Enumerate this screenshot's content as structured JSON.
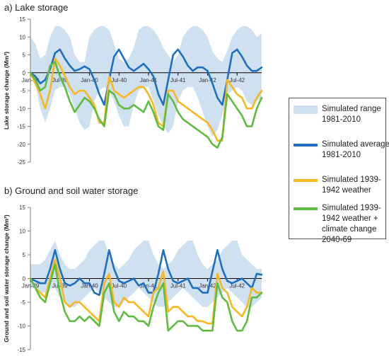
{
  "chart_data": [
    {
      "panel": "a",
      "type": "line",
      "title": "a) Lake storage",
      "ylabel": "Lake storage change (Mm³)",
      "xlabel": "",
      "ylim": [
        -25,
        15
      ],
      "yticks": [
        15,
        10,
        5,
        0,
        -5,
        -10,
        -15,
        -20,
        -25
      ],
      "xtick_labels": [
        "Jan-39",
        "Jul-39",
        "Jan-40",
        "Jul-40",
        "Jan-41",
        "Jul-41",
        "Jan-42",
        "Jul-42"
      ],
      "x_start": "Jan-1939",
      "n_months": 48,
      "band": {
        "name": "Simulated range 1981-2010",
        "upper": [
          10,
          8,
          4,
          5,
          10,
          13,
          13,
          12,
          10,
          5,
          3,
          3,
          10,
          12,
          13,
          13,
          12,
          8,
          4,
          3,
          4,
          7,
          12,
          13,
          13,
          12,
          10,
          7,
          5,
          3,
          5,
          10,
          12,
          13,
          13,
          12,
          10,
          6,
          4,
          3,
          6,
          10,
          12,
          13,
          13,
          12,
          10,
          11
        ],
        "lower": [
          0,
          -3,
          -10,
          -14,
          -10,
          -5,
          -4,
          -4,
          -6,
          -10,
          -14,
          -16,
          -15,
          -8,
          -5,
          -4,
          -5,
          -8,
          -12,
          -15,
          -15,
          -9,
          -5,
          -4,
          -4,
          -8,
          -12,
          -15,
          -17,
          -15,
          -8,
          -5,
          -4,
          -4,
          -7,
          -11,
          -15,
          -18,
          -16,
          -12,
          -6,
          -5,
          -4,
          -5,
          -8,
          -9,
          -8,
          -7
        ]
      },
      "series": [
        {
          "name": "Simulated average 1981-2010",
          "values": [
            0,
            -1,
            -3,
            -2,
            1,
            5.5,
            6.5,
            4,
            2,
            0.5,
            1,
            1.8,
            1,
            -2,
            -6,
            -9,
            -2,
            4.5,
            6.5,
            4,
            1.5,
            0.5,
            1.5,
            2.5,
            1,
            -1,
            -6,
            -9,
            -2,
            5,
            6.5,
            4.5,
            2,
            0.5,
            1.5,
            1.5,
            0.5,
            -3,
            -7,
            -9,
            -2,
            5.5,
            6.5,
            4.5,
            2,
            0.5,
            0.5,
            1.5
          ]
        },
        {
          "name": "Simulated 1939-1942 weather",
          "values": [
            0,
            -3,
            -6,
            -10,
            -5,
            4,
            2,
            -1,
            -4,
            -6,
            -5,
            -5,
            -7,
            -9,
            -14,
            -14,
            -1,
            -5,
            -6,
            -7,
            -6,
            -5,
            -4,
            -4,
            -6,
            -9,
            -14,
            -15,
            -5,
            -5,
            -8,
            -9,
            -10,
            -11,
            -12,
            -13,
            -14,
            -16,
            -19,
            -19,
            -2,
            -4,
            -6,
            -7,
            -10,
            -10,
            -7,
            -5
          ]
        },
        {
          "name": "Simulated 1939-1942 weather + climate change 2040-69",
          "values": [
            0,
            -2,
            -5,
            -4,
            2,
            3,
            -1,
            -4,
            -8,
            -11,
            -9,
            -7,
            -8,
            -10,
            -13,
            -15,
            -5,
            -6,
            -9,
            -10,
            -10,
            -9,
            -10,
            -11,
            -8,
            -11,
            -15,
            -16,
            -6,
            -8,
            -11,
            -13,
            -14,
            -15,
            -16,
            -17,
            -18,
            -20,
            -21,
            -18,
            -6,
            -8,
            -10,
            -12,
            -15,
            -15,
            -10,
            -7
          ]
        }
      ]
    },
    {
      "panel": "b",
      "type": "line",
      "title": "b) Ground and soil water storage",
      "ylabel": "Ground and soil water storage change (Mm³)",
      "xlabel": "",
      "ylim": [
        -15,
        15
      ],
      "yticks": [
        15,
        10,
        5,
        0,
        -5,
        -10,
        -15
      ],
      "xtick_labels": [
        "Jan-39",
        "Jul-39",
        "Jan-40",
        "Jul-40",
        "Jan-41",
        "Jul-41",
        "Jan-42",
        "Jul-42"
      ],
      "x_start": "Jan-1939",
      "n_months": 48,
      "band": {
        "name": "Simulated range 1981-2010",
        "upper": [
          3,
          3,
          3,
          4,
          6,
          8,
          5,
          3,
          2,
          2,
          3,
          4,
          6,
          7,
          8,
          8,
          5,
          3,
          2,
          3,
          4,
          6,
          7,
          8,
          8,
          5,
          3,
          2,
          3,
          4,
          6,
          7,
          8,
          8,
          5,
          3,
          2,
          3,
          4,
          6,
          7,
          8,
          8,
          5,
          4,
          3,
          2,
          2
        ],
        "lower": [
          -2,
          -2,
          -3,
          -3,
          -2,
          -2,
          -4,
          -5,
          -6,
          -6,
          -5,
          -4,
          -3,
          -2,
          -3,
          -4,
          -5,
          -6,
          -6,
          -5,
          -4,
          -3,
          -2,
          -3,
          -4,
          -5,
          -6,
          -6,
          -5,
          -4,
          -3,
          -2,
          -3,
          -4,
          -5,
          -6,
          -6,
          -5,
          -4,
          -3,
          -2,
          -3,
          -4,
          -5,
          -6,
          -6,
          -5,
          -4
        ]
      },
      "series": [
        {
          "name": "Simulated average 1981-2010",
          "values": [
            0,
            -0.5,
            -1,
            -1,
            2,
            6,
            2,
            -1,
            -1.5,
            -1,
            0,
            -1,
            -1,
            -3,
            -3.5,
            1,
            6,
            2,
            -0.5,
            -1,
            -0.5,
            0,
            -1.5,
            -1,
            -3,
            -3,
            1,
            6,
            2,
            -0.5,
            -1,
            -0.5,
            0,
            -2,
            -2,
            -3,
            -3,
            1.5,
            6,
            2,
            -0.5,
            -1,
            -0.5,
            0,
            -1,
            -2,
            1,
            0.8
          ]
        },
        {
          "name": "Simulated 1939-1942 weather",
          "values": [
            0,
            -2,
            -3,
            -4,
            0,
            4,
            0,
            -5,
            -6,
            -5,
            -5,
            -6,
            -7,
            -8,
            -9,
            -1,
            1,
            -5,
            -6,
            -4,
            -5,
            -5,
            -6,
            -7,
            -8,
            -3,
            -2,
            1.5,
            -7,
            -6,
            -6,
            -7,
            -8,
            -8,
            -9,
            -9,
            -9.5,
            -9.5,
            1,
            -2,
            -3,
            -6,
            -7,
            -8,
            -6,
            -2,
            -3,
            -3
          ]
        },
        {
          "name": "Simulated 1939-1942 weather + climate change 2040-69",
          "values": [
            0,
            -2,
            -4,
            -5,
            -1,
            3,
            -3,
            -7,
            -9,
            -9,
            -8,
            -9,
            -8,
            -9,
            -10,
            -3,
            -1,
            -7,
            -9,
            -7,
            -8,
            -8,
            -9,
            -9,
            -10,
            -6,
            -3,
            -1,
            -11,
            -10,
            -9,
            -9,
            -10,
            -10,
            -10,
            -11,
            -11,
            -11,
            -1,
            -4,
            -5,
            -9,
            -11,
            -11,
            -9,
            -4,
            -4,
            -3
          ]
        }
      ]
    }
  ],
  "legend": [
    {
      "text": "Simulated range 1981-2010",
      "color": "#cfe0f1",
      "kind": "band"
    },
    {
      "text": "Simulated average 1981-2010",
      "color": "#1f6fbf",
      "kind": "line"
    },
    {
      "text": "Simulated 1939-1942 weather",
      "color": "#f7b81f",
      "kind": "line"
    },
    {
      "text": "Simulated 1939-1942 weather + climate change 2040-69",
      "color": "#5ebd3e",
      "kind": "line"
    }
  ],
  "colors": {
    "band": "#cfe0f1",
    "average": "#1f6fbf",
    "weather": "#f7b81f",
    "climate": "#5ebd3e",
    "axis": "#7f7f7f"
  }
}
